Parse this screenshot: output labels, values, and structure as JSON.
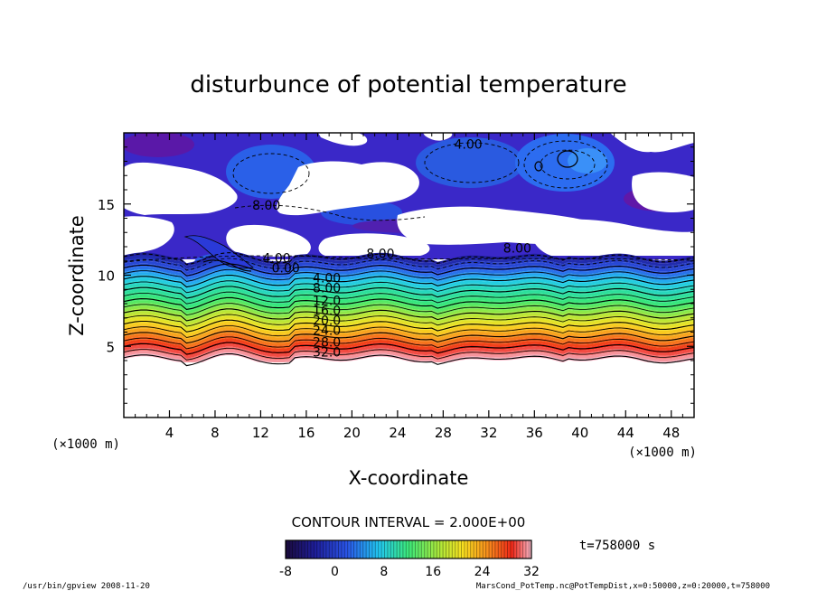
{
  "chart_data": {
    "type": "heatmap",
    "title": "disturbunce of potential temperature",
    "xlabel": "X-coordinate",
    "ylabel": "Z-coordinate",
    "x_unit": "(×1000 m)",
    "y_unit": "(×1000 m)",
    "xlim": [
      0,
      50
    ],
    "ylim": [
      0,
      20
    ],
    "x_ticks": [
      4,
      8,
      12,
      16,
      20,
      24,
      28,
      32,
      36,
      40,
      44,
      48
    ],
    "y_ticks": [
      5,
      10,
      15
    ],
    "contour_interval_text": "CONTOUR INTERVAL = 2.000E+00",
    "time_text": "t=758000 s",
    "colorbar": {
      "range": [
        -8,
        32
      ],
      "ticks": [
        -8,
        0,
        8,
        16,
        24,
        32
      ]
    },
    "contour_labels": [
      {
        "text": "4.00",
        "x": 30.2,
        "z": 18.9
      },
      {
        "text": "8.00",
        "x": 12.5,
        "z": 14.6
      },
      {
        "text": "8.00",
        "x": 22.5,
        "z": 11.2
      },
      {
        "text": "8.00",
        "x": 34.5,
        "z": 11.6
      },
      {
        "text": "4.00",
        "x": 13.4,
        "z": 10.9
      },
      {
        "text": "0.00",
        "x": 14.2,
        "z": 10.2
      },
      {
        "text": "4.00",
        "x": 17.8,
        "z": 9.5
      },
      {
        "text": "8.00",
        "x": 17.8,
        "z": 8.8
      },
      {
        "text": "12.0",
        "x": 17.8,
        "z": 7.9
      },
      {
        "text": "16.0",
        "x": 17.8,
        "z": 7.2
      },
      {
        "text": "20.0",
        "x": 17.8,
        "z": 6.5
      },
      {
        "text": "24.0",
        "x": 17.8,
        "z": 5.8
      },
      {
        "text": "28.0",
        "x": 17.8,
        "z": 5.0
      },
      {
        "text": "32.0",
        "x": 17.8,
        "z": 4.3
      }
    ],
    "footer_left": "/usr/bin/gpview  2008-11-20",
    "footer_right": "MarsCond_PotTemp.nc@PotTempDist,x=0:50000,z=0:20000,t=758000"
  }
}
